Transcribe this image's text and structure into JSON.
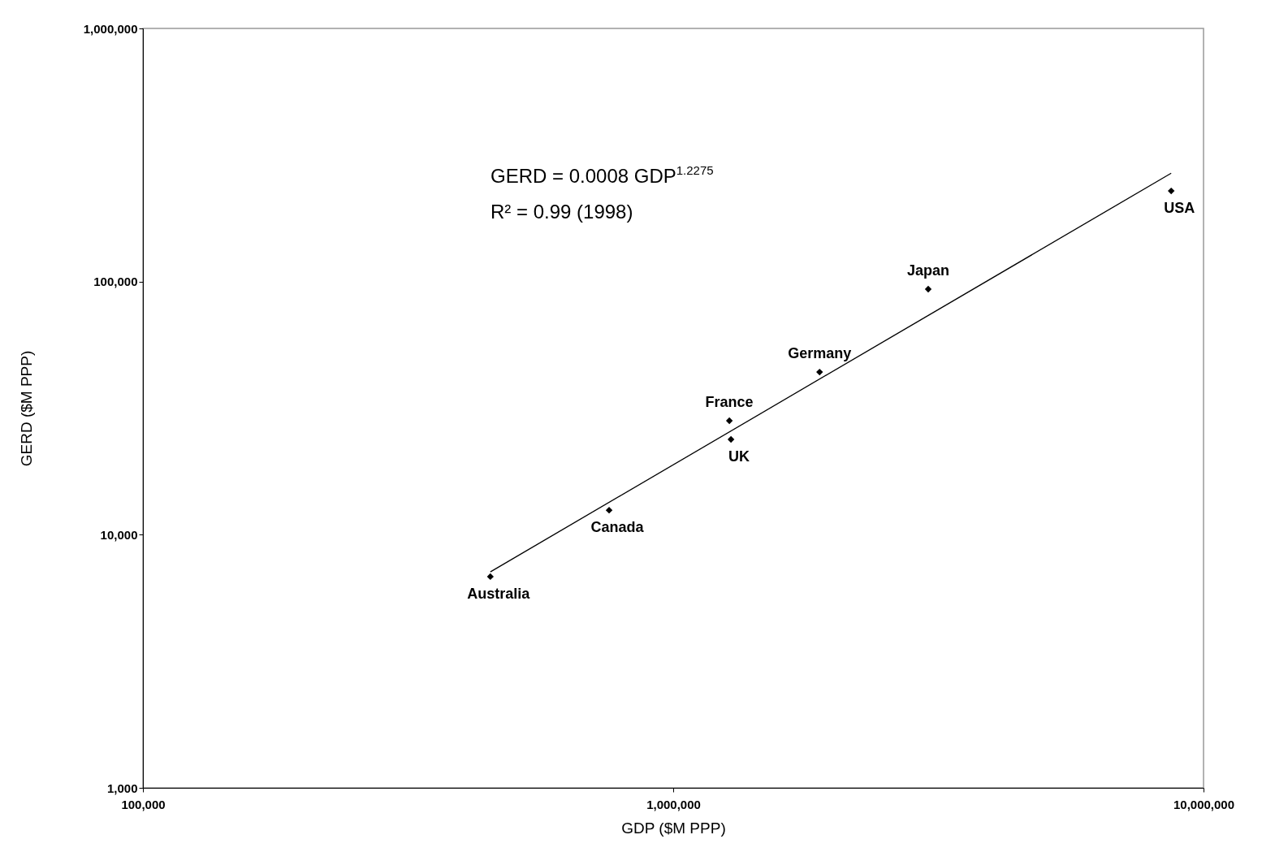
{
  "chart_data": {
    "type": "scatter",
    "xlabel": "GDP ($M PPP)",
    "ylabel": "GERD ($M PPP)",
    "log": "xy",
    "marker": "diamond",
    "xlim": [
      100000,
      10000000
    ],
    "xticks": [
      {
        "value": 100000,
        "label": "100,000"
      },
      {
        "value": 1000000,
        "label": "1,000,000"
      },
      {
        "value": 10000000,
        "label": "10,000,000"
      }
    ],
    "ylim": [
      1000,
      1000000
    ],
    "yticks": [
      {
        "value": 1000,
        "label": "1,000"
      },
      {
        "value": 10000,
        "label": "10,000"
      },
      {
        "value": 100000,
        "label": "100,000"
      },
      {
        "value": 1000000,
        "label": "1,000,000"
      }
    ],
    "series": [
      {
        "color": "#000000",
        "x": [
          452000,
          757000,
          1276000,
          1285000,
          1888000,
          3026000,
          8690000
        ],
        "values": [
          6830,
          12500,
          28200,
          23800,
          43900,
          93300,
          228000
        ]
      },
      {
        "type": "line",
        "color": "#000000",
        "marker": "none",
        "x": [
          452000,
          8690000
        ],
        "values": [
          7130,
          268000
        ]
      }
    ],
    "annotations": [
      {
        "text": "Australia",
        "x": 452000,
        "y": 6830
      },
      {
        "text": "Canada",
        "x": 757000,
        "y": 12500
      },
      {
        "text": "France",
        "x": 1276000,
        "y": 28200
      },
      {
        "text": "UK",
        "x": 1285000,
        "y": 23800
      },
      {
        "text": "Germany",
        "x": 1888000,
        "y": 43900
      },
      {
        "text": "Japan",
        "x": 3026000,
        "y": 93300
      },
      {
        "text": "USA",
        "x": 8690000,
        "y": 228000
      },
      "GERD = 0.0008 GDP$^{1.2275}$",
      "R² = 0.99 (1998)"
    ]
  }
}
